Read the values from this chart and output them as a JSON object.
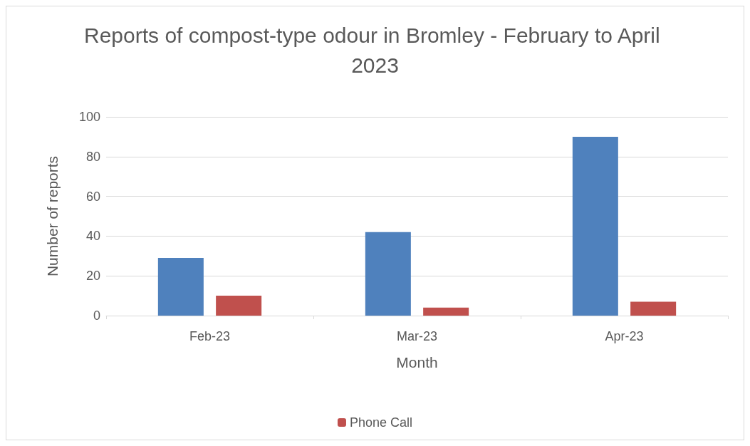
{
  "chart_data": {
    "type": "bar",
    "title": "Reports of compost-type odour in Bromley - February to April 2023",
    "xlabel": "Month",
    "ylabel": "Number of reports",
    "categories": [
      "Feb-23",
      "Mar-23",
      "Apr-23"
    ],
    "series": [
      {
        "color": "#4f81bd",
        "values": [
          29,
          42,
          90
        ]
      },
      {
        "name": "Phone Call",
        "color": "#c0504d",
        "values": [
          10,
          4,
          7
        ]
      }
    ],
    "ylim": [
      0,
      100
    ],
    "yticks": [
      0,
      20,
      40,
      60,
      80,
      100
    ],
    "grid": "y",
    "legend": "bottom"
  }
}
